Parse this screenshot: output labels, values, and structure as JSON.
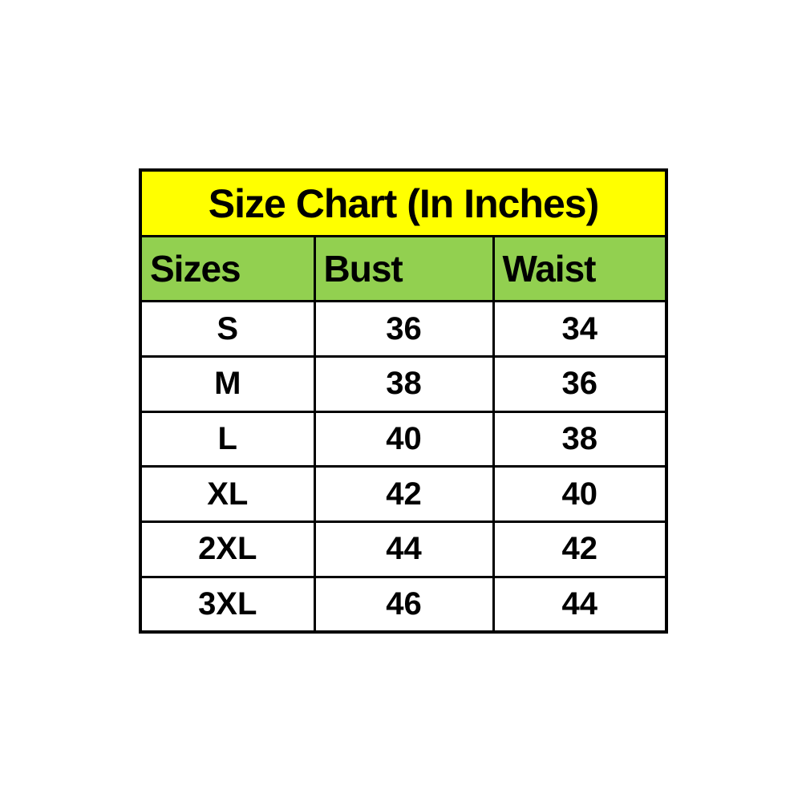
{
  "chart_data": {
    "type": "table",
    "title": "Size Chart (In Inches)",
    "columns": [
      "Sizes",
      "Bust",
      "Waist"
    ],
    "rows": [
      [
        "S",
        "36",
        "34"
      ],
      [
        "M",
        "38",
        "36"
      ],
      [
        "L",
        "40",
        "38"
      ],
      [
        "XL",
        "42",
        "40"
      ],
      [
        "2XL",
        "44",
        "42"
      ],
      [
        "3XL",
        "46",
        "44"
      ]
    ]
  },
  "colors": {
    "title_bg": "#ffff00",
    "header_bg": "#92d050",
    "border_color": "#000000",
    "text_color": "#000000",
    "page_bg": "#ffffff"
  }
}
